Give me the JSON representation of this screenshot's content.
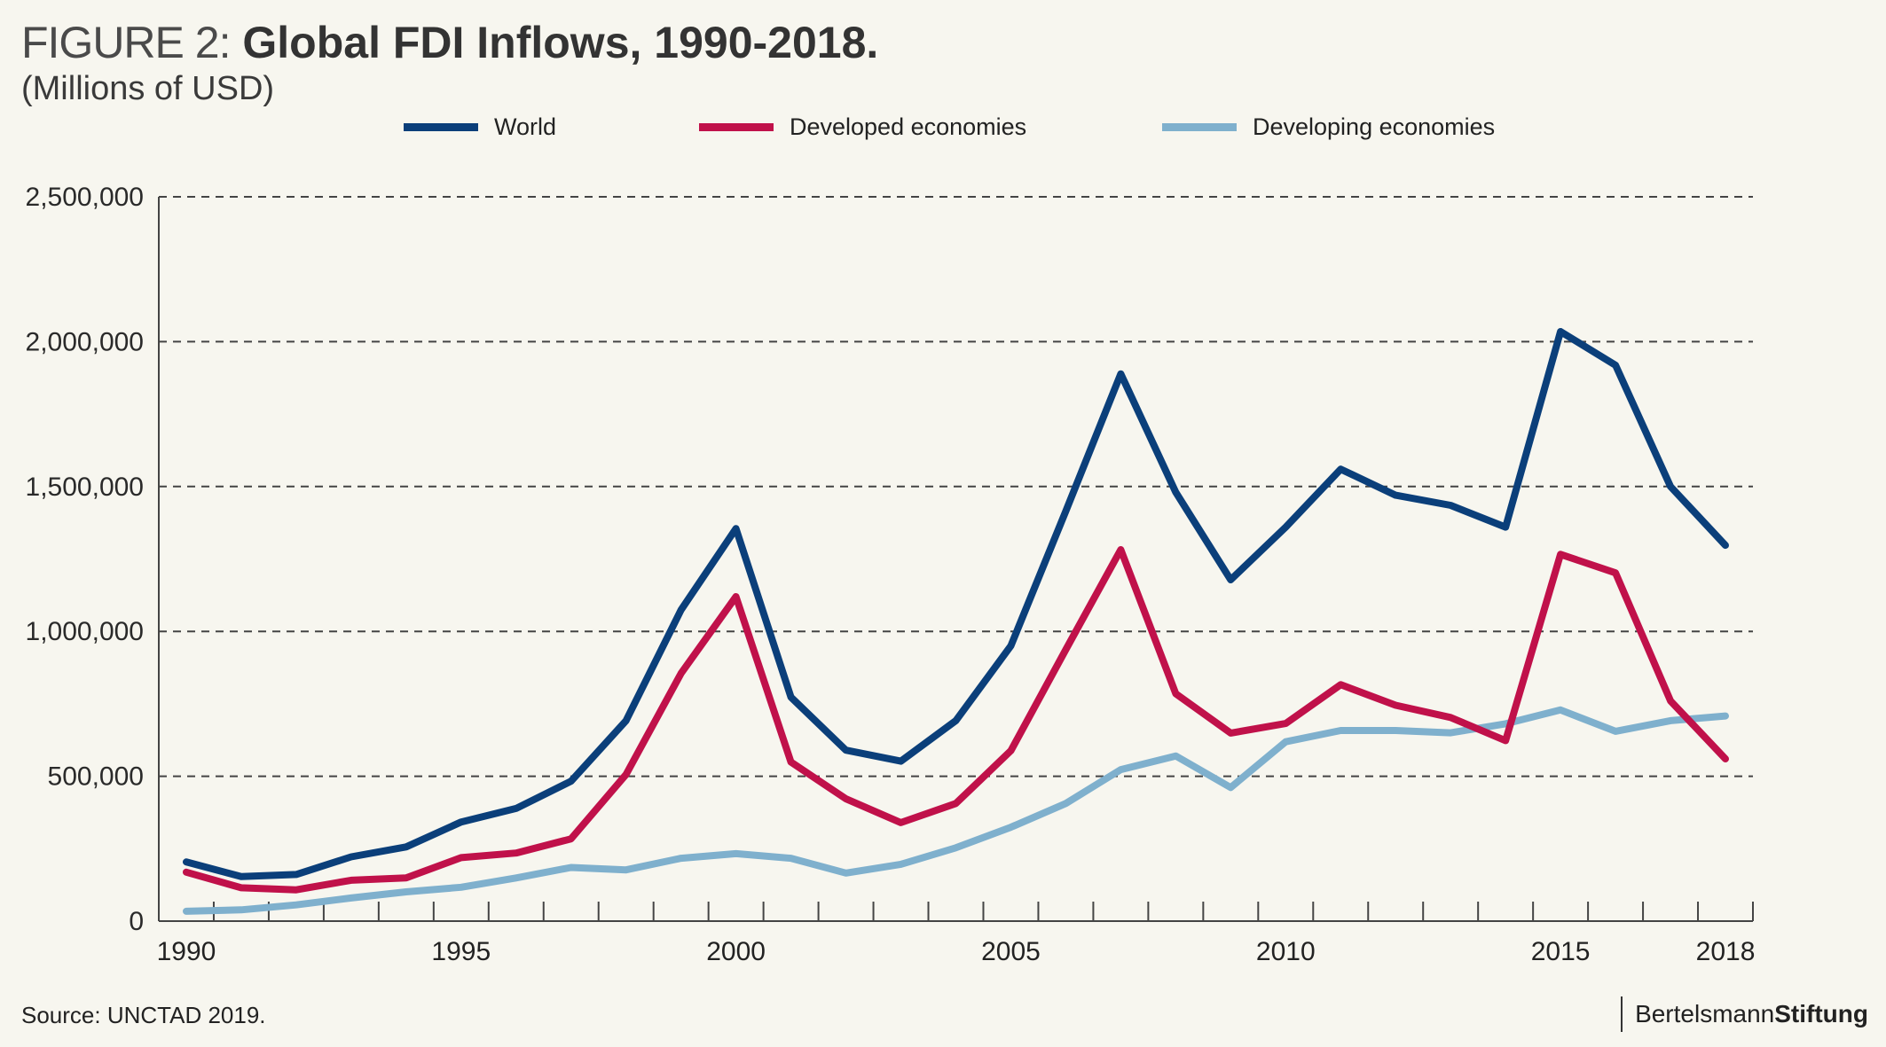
{
  "header": {
    "figure_label": "FIGURE 2:",
    "title": "Global FDI Inflows, 1990-2018.",
    "subtitle": "(Millions of USD)"
  },
  "footer": {
    "source": "Source: UNCTAD 2019.",
    "brand_part1": "Bertelsmann",
    "brand_part2": "Stiftung"
  },
  "chart_data": {
    "type": "line",
    "title": "Global FDI Inflows, 1990-2018.",
    "subtitle": "(Millions of USD)",
    "xlabel": "",
    "ylabel": "",
    "x": [
      1990,
      1991,
      1992,
      1993,
      1994,
      1995,
      1996,
      1997,
      1998,
      1999,
      2000,
      2001,
      2002,
      2003,
      2004,
      2005,
      2006,
      2007,
      2008,
      2009,
      2010,
      2011,
      2012,
      2013,
      2014,
      2015,
      2016,
      2017,
      2018
    ],
    "x_tick_labels": [
      "1990",
      "1995",
      "2000",
      "2005",
      "2010",
      "2015",
      "2018"
    ],
    "ylim": [
      0,
      2500000
    ],
    "y_ticks": [
      0,
      500000,
      1000000,
      1500000,
      2000000,
      2500000
    ],
    "y_tick_labels": [
      "0",
      "500,000",
      "1,000,000",
      "1,500,000",
      "2,000,000",
      "2,500,000"
    ],
    "grid": "horizontal dashed",
    "legend_position": "top-center",
    "series": [
      {
        "name": "World",
        "color": "#0b3f7a",
        "values": [
          204000,
          154000,
          161000,
          222000,
          256000,
          342000,
          389000,
          483000,
          692000,
          1074000,
          1355000,
          773000,
          590000,
          552000,
          692000,
          950000,
          1415000,
          1889000,
          1480000,
          1178000,
          1360000,
          1560000,
          1470000,
          1435000,
          1360000,
          2035000,
          1919000,
          1500000,
          1297000
        ]
      },
      {
        "name": "Developed economies",
        "color": "#c0114a",
        "values": [
          169000,
          115000,
          108000,
          141000,
          149000,
          219000,
          235000,
          284000,
          506000,
          855000,
          1120000,
          549000,
          422000,
          340000,
          406000,
          588000,
          937000,
          1282000,
          785000,
          649000,
          682000,
          816000,
          745000,
          703000,
          623000,
          1266000,
          1202000,
          760000,
          560000
        ]
      },
      {
        "name": "Developing economies",
        "color": "#7fb0cd",
        "values": [
          34000,
          39000,
          56000,
          80000,
          101000,
          117000,
          149000,
          185000,
          177000,
          217000,
          233000,
          217000,
          166000,
          196000,
          253000,
          324000,
          406000,
          523000,
          570000,
          461000,
          619000,
          658000,
          658000,
          650000,
          681000,
          729000,
          655000,
          692000,
          708000
        ]
      }
    ]
  }
}
